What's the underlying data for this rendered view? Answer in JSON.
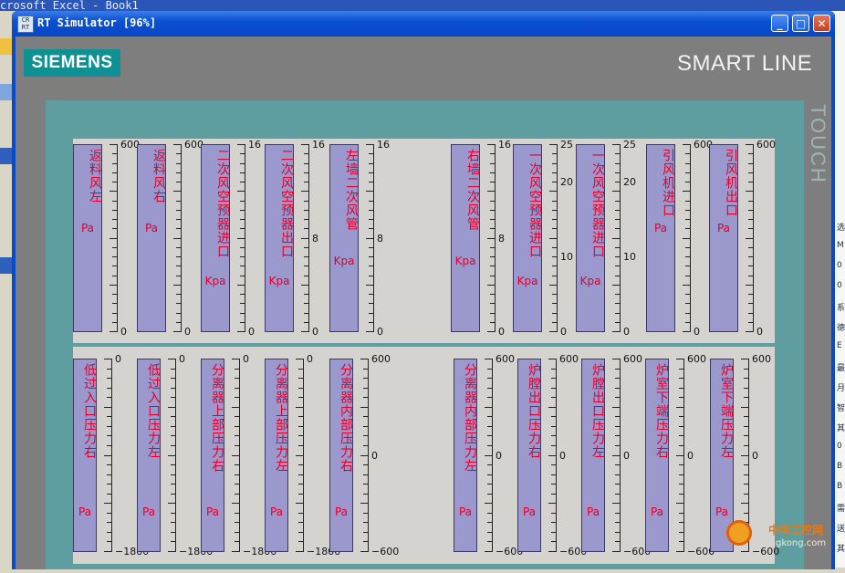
{
  "desktop": {
    "excel_title": "crosoft Excel - Book1",
    "right_edge_chars": [
      "选",
      "M",
      "0",
      "0",
      "系",
      "德",
      "E",
      "最",
      "月",
      "智",
      "其",
      "0",
      "B",
      "B",
      "需",
      "送",
      "其"
    ]
  },
  "window": {
    "title": "RT Simulator [96%]",
    "icon_text": "CR RT",
    "buttons": {
      "minimize": "_",
      "maximize": "□",
      "close": "✕"
    }
  },
  "hmi": {
    "logo": "SIEMENS",
    "brand": "SMART LINE",
    "side_text": "TOUCH"
  },
  "gauges_top": [
    {
      "label": "返料风左",
      "unit": "Pa",
      "scale": [
        "600",
        "0"
      ]
    },
    {
      "label": "返料风右",
      "unit": "Pa",
      "scale": [
        "600",
        "0"
      ]
    },
    {
      "label": "二次风空预器进口",
      "unit": "Kpa",
      "scale": [
        "16",
        "0"
      ]
    },
    {
      "label": "二次风空预器出口",
      "unit": "Kpa",
      "scale": [
        "16",
        "8",
        "0"
      ]
    },
    {
      "label": "左墙二次风管",
      "unit": "Kpa",
      "scale": [
        "16",
        "8",
        "0"
      ]
    },
    {
      "label": "右墙二次风管",
      "unit": "Kpa",
      "scale": [
        "16",
        "8",
        "0"
      ]
    },
    {
      "label": "一次风空预器进口",
      "unit": "Kpa",
      "scale": [
        "25",
        "20",
        "10",
        "0"
      ]
    },
    {
      "label": "一次风空预器进口",
      "unit": "Kpa",
      "scale": [
        "25",
        "20",
        "10",
        "0"
      ]
    },
    {
      "label": "引风机进口",
      "unit": "Pa",
      "scale": [
        "600",
        "0"
      ]
    },
    {
      "label": "引风机出口",
      "unit": "Pa",
      "scale": [
        "600",
        "0"
      ]
    }
  ],
  "gauges_bottom": [
    {
      "label": "低过入口压力右",
      "unit": "Pa",
      "scale": [
        "0",
        "−1800"
      ]
    },
    {
      "label": "低过入口压力左",
      "unit": "Pa",
      "scale": [
        "0",
        "−1800"
      ]
    },
    {
      "label": "分离器上部压力右",
      "unit": "Pa",
      "scale": [
        "0",
        "−1800"
      ]
    },
    {
      "label": "分离器上部压力左",
      "unit": "Pa",
      "scale": [
        "0",
        "−1800"
      ]
    },
    {
      "label": "分离器内部压力右",
      "unit": "Pa",
      "scale": [
        "600",
        "0",
        "−600"
      ]
    },
    {
      "label": "分离器内部压力左",
      "unit": "Pa",
      "scale": [
        "600",
        "0",
        "−600"
      ]
    },
    {
      "label": "炉膛出口压力右",
      "unit": "Pa",
      "scale": [
        "600",
        "0",
        "−600"
      ]
    },
    {
      "label": "炉膛出口压力左",
      "unit": "Pa",
      "scale": [
        "600",
        "0",
        "−600"
      ]
    },
    {
      "label": "炉室下端压力右",
      "unit": "Pa",
      "scale": [
        "600",
        "0",
        "−600"
      ]
    },
    {
      "label": "炉室下端压力左",
      "unit": "Pa",
      "scale": [
        "600",
        "0",
        "−600"
      ]
    }
  ],
  "watermark": {
    "cn": "中华工控网",
    "url": "gkong.com"
  }
}
